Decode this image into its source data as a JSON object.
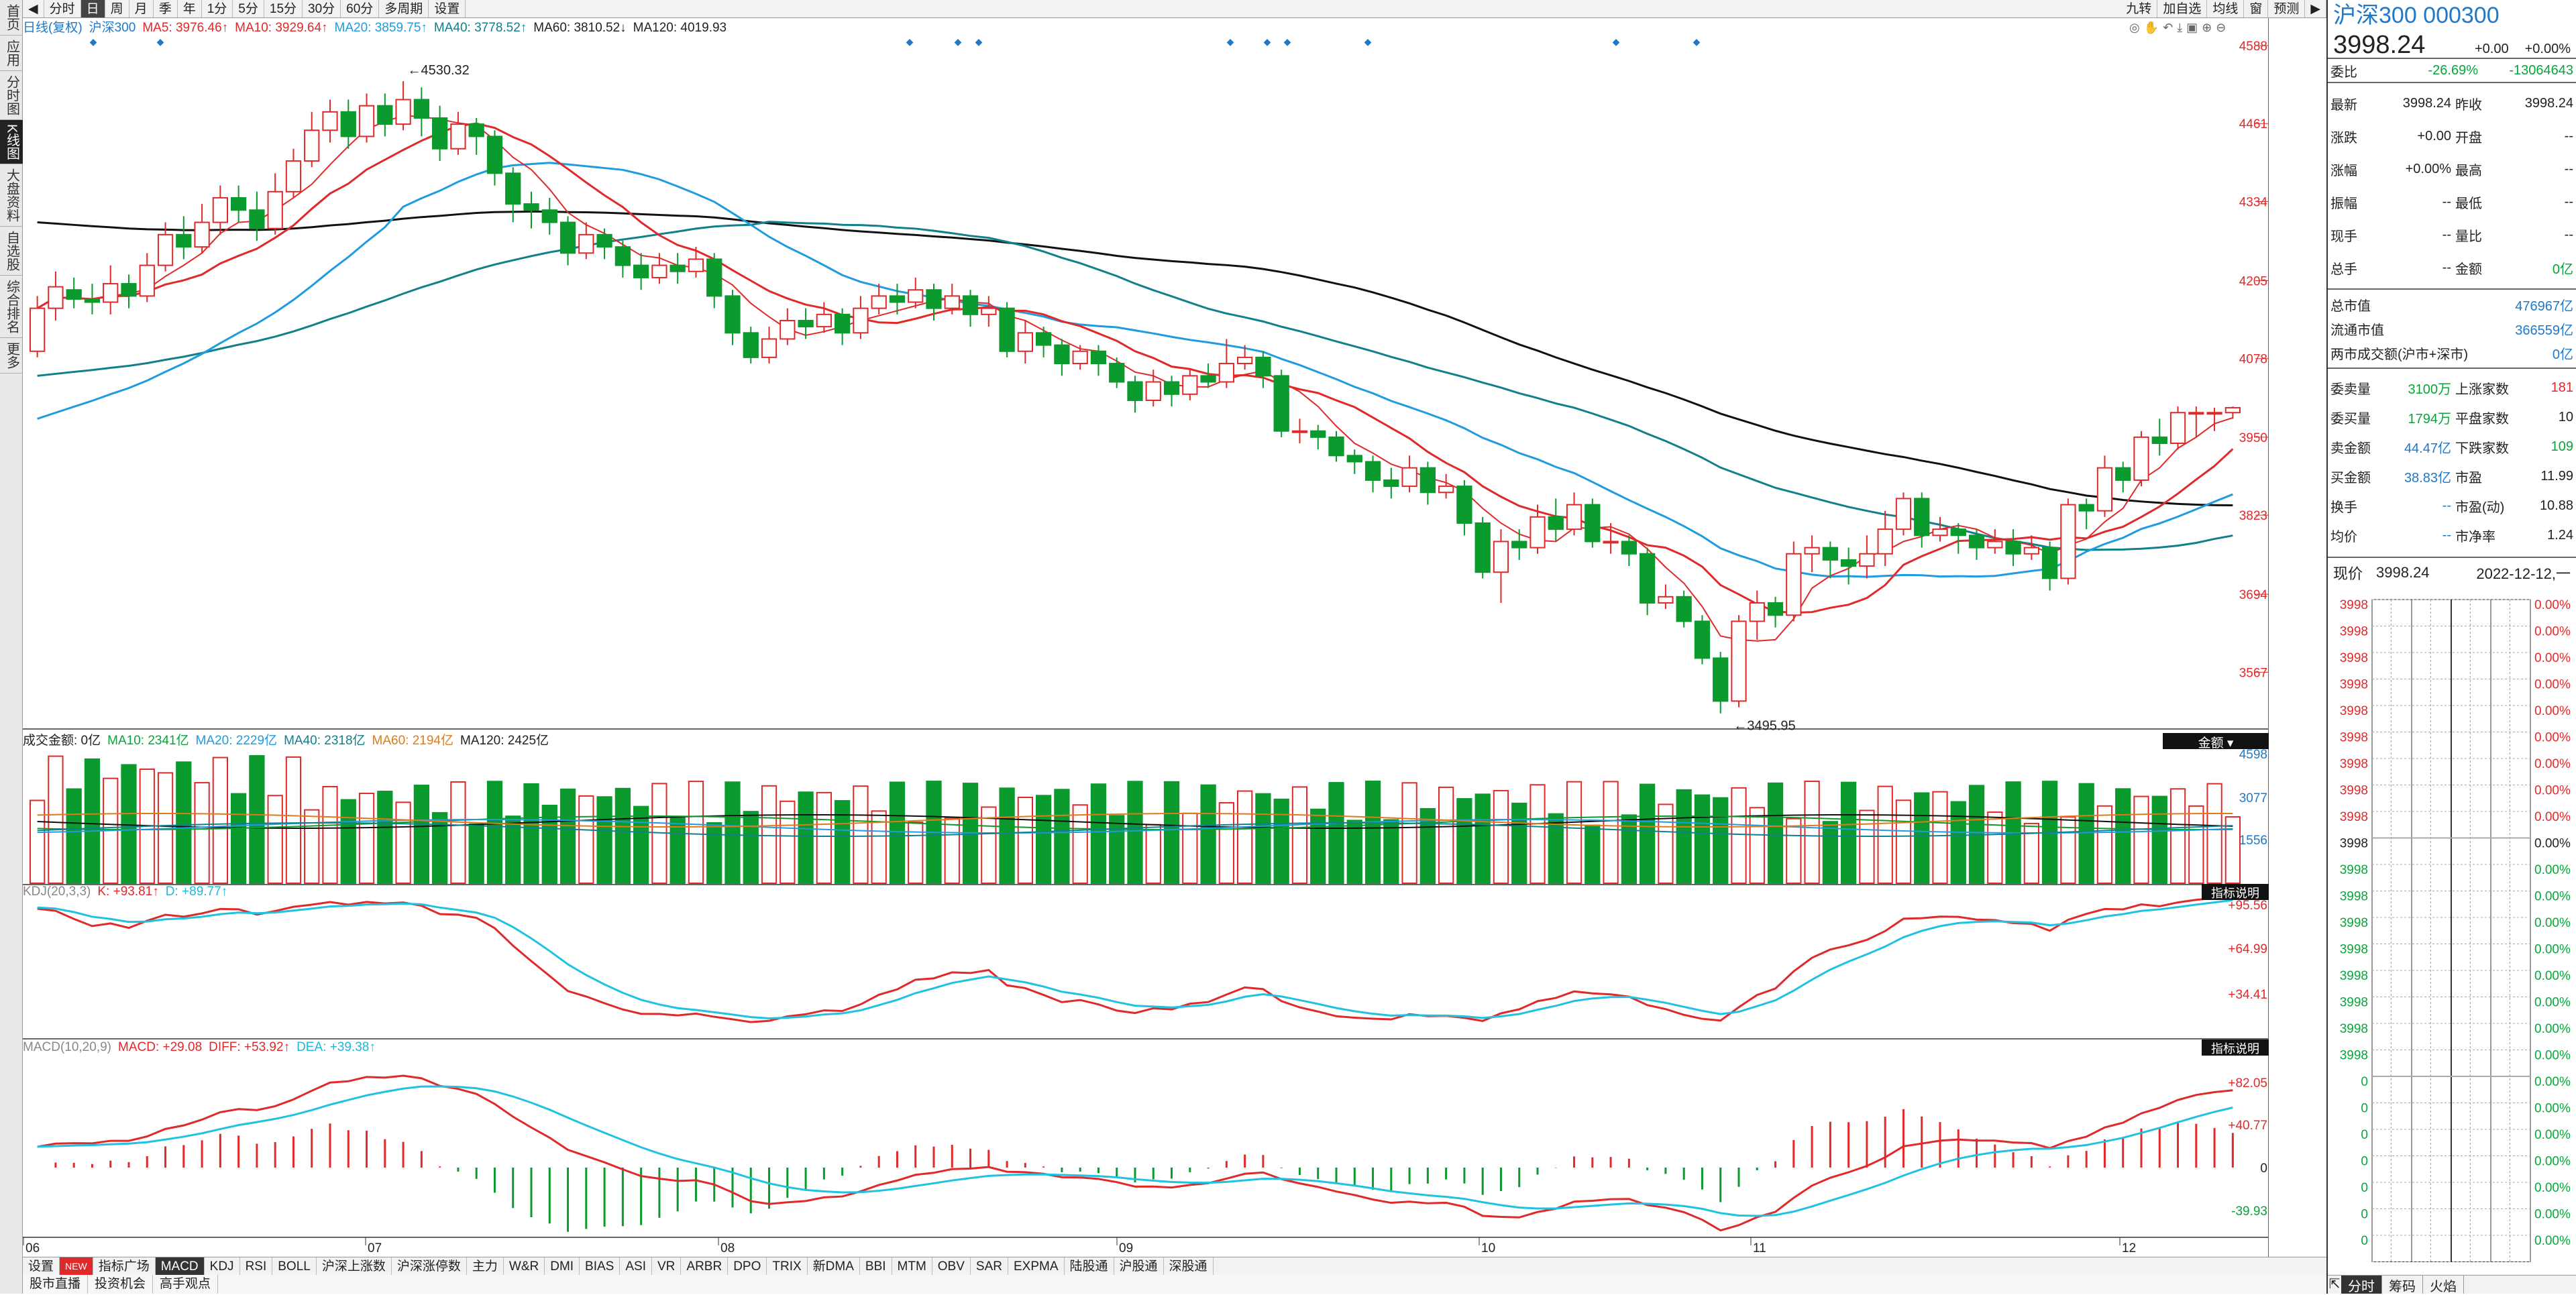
{
  "sidebar": [
    "首页",
    "应用",
    "分时图",
    "K线图",
    "大盘资料",
    "自选股",
    "综合排名",
    "更多"
  ],
  "sidebar_active": 3,
  "periods": [
    "分时",
    "日",
    "周",
    "月",
    "季",
    "年",
    "1分",
    "5分",
    "15分",
    "30分",
    "60分",
    "多周期",
    "设置"
  ],
  "period_active": 1,
  "top_right": [
    "九转",
    "加自选",
    "均线",
    "窗",
    "预测"
  ],
  "legend_main": {
    "name": "日线(复权)",
    "index": "沪深300",
    "ma5": "MA5: 3976.46↑",
    "ma10": "MA10: 3929.64↑",
    "ma20": "MA20: 3859.75↑",
    "ma40": "MA40: 3778.52↑",
    "ma60": "MA60: 3810.52↓",
    "ma120": "MA120: 4019.93"
  },
  "legend_vol": {
    "name": "成交金额: 0亿",
    "ma10": "MA10: 2341亿",
    "ma20": "MA20: 2229亿",
    "ma40": "MA40: 2318亿",
    "ma60": "MA60: 2194亿",
    "ma120": "MA120: 2425亿",
    "btn": "金额"
  },
  "legend_kdj": {
    "name": "KDJ(20,3,3)",
    "k": "K: +93.81↑",
    "d": "D: +89.77↑",
    "btn": "指标说明"
  },
  "legend_macd": {
    "name": "MACD(10,20,9)",
    "macd": "MACD: +29.08",
    "diff": "DIFF: +53.92↑",
    "dea": "DEA: +39.38↑",
    "btn": "指标说明"
  },
  "annotations": {
    "high": "4530.32",
    "low": "3495.95"
  },
  "axis_main": [
    "4588",
    "4461",
    "4334",
    "4205",
    "4078",
    "3950",
    "3823",
    "3694",
    "3567"
  ],
  "axis_vol": [
    "4598",
    "3077",
    "1556"
  ],
  "axis_kdj": [
    "+95.56",
    "+64.99",
    "+34.41"
  ],
  "axis_macd": [
    "+82.05",
    "+40.77",
    "0",
    "-39.93"
  ],
  "months": [
    "06",
    "07",
    "08",
    "09",
    "10",
    "11",
    "12"
  ],
  "indicator_tabs": [
    "设置",
    "NEW",
    "指标广场",
    "MACD",
    "KDJ",
    "RSI",
    "BOLL",
    "沪深上涨数",
    "沪深涨停数",
    "主力",
    "W&R",
    "DMI",
    "BIAS",
    "ASI",
    "VR",
    "ARBR",
    "DPO",
    "TRIX",
    "新DMA",
    "BBI",
    "MTM",
    "OBV",
    "SAR",
    "EXPMA",
    "陆股通",
    "沪股通",
    "深股通"
  ],
  "indicator_active": 3,
  "bottom_tabs": [
    "股市直播",
    "投资机会",
    "高手观点"
  ],
  "quote": {
    "title": "沪深300 000300",
    "price": "3998.24",
    "chg": "+0.00",
    "pct": "+0.00%",
    "weibi_l": "委比",
    "weibi_v": "-26.69%",
    "weicha_v": "-13064643",
    "rows": [
      [
        "最新",
        "3998.24",
        "昨收",
        "3998.24"
      ],
      [
        "涨跌",
        "+0.00",
        "开盘",
        "--"
      ],
      [
        "涨幅",
        "+0.00%",
        "最高",
        "--"
      ],
      [
        "振幅",
        "--",
        "最低",
        "--"
      ],
      [
        "现手",
        "--",
        "量比",
        "--"
      ],
      [
        "总手",
        "--",
        "金额",
        "0亿"
      ]
    ],
    "cap": [
      [
        "总市值",
        "476967亿"
      ],
      [
        "流通市值",
        "366559亿"
      ],
      [
        "两市成交额(沪市+深市)",
        "0亿"
      ]
    ],
    "stats": [
      [
        "委卖量",
        "3100万",
        "上涨家数",
        "181"
      ],
      [
        "委买量",
        "1794万",
        "平盘家数",
        "10"
      ],
      [
        "卖金额",
        "44.47亿",
        "下跌家数",
        "109"
      ],
      [
        "买金额",
        "38.83亿",
        "市盈",
        "11.99"
      ],
      [
        "换手",
        "--",
        "市盈(动)",
        "10.88"
      ],
      [
        "均价",
        "--",
        "市净率",
        "1.24"
      ]
    ],
    "now_label": "现价",
    "now_price": "3998.24",
    "now_date": "2022-12-12,一",
    "tick_price": "3998",
    "tick_pct": "0.00%",
    "tick_low": "0",
    "bottom": [
      "分时",
      "筹码",
      "火焰"
    ]
  },
  "chart_data": {
    "type": "candlestick",
    "main_ylim": [
      3480,
      4600
    ],
    "candles": [
      [
        4090,
        4160,
        4180,
        4080
      ],
      [
        4160,
        4195,
        4220,
        4140
      ],
      [
        4190,
        4175,
        4210,
        4160
      ],
      [
        4175,
        4170,
        4200,
        4150
      ],
      [
        4170,
        4200,
        4230,
        4150
      ],
      [
        4200,
        4180,
        4215,
        4160
      ],
      [
        4180,
        4230,
        4250,
        4170
      ],
      [
        4230,
        4280,
        4300,
        4220
      ],
      [
        4280,
        4260,
        4310,
        4240
      ],
      [
        4260,
        4300,
        4330,
        4250
      ],
      [
        4300,
        4340,
        4360,
        4280
      ],
      [
        4340,
        4320,
        4360,
        4300
      ],
      [
        4320,
        4290,
        4350,
        4270
      ],
      [
        4290,
        4350,
        4380,
        4280
      ],
      [
        4350,
        4400,
        4420,
        4340
      ],
      [
        4400,
        4450,
        4480,
        4390
      ],
      [
        4450,
        4480,
        4500,
        4430
      ],
      [
        4480,
        4440,
        4500,
        4420
      ],
      [
        4440,
        4490,
        4510,
        4430
      ],
      [
        4490,
        4460,
        4510,
        4440
      ],
      [
        4460,
        4500,
        4530,
        4450
      ],
      [
        4500,
        4470,
        4520,
        4440
      ],
      [
        4470,
        4420,
        4490,
        4400
      ],
      [
        4420,
        4460,
        4480,
        4410
      ],
      [
        4460,
        4440,
        4470,
        4410
      ],
      [
        4440,
        4380,
        4450,
        4360
      ],
      [
        4380,
        4330,
        4390,
        4300
      ],
      [
        4330,
        4320,
        4350,
        4290
      ],
      [
        4320,
        4300,
        4340,
        4280
      ],
      [
        4300,
        4250,
        4310,
        4230
      ],
      [
        4250,
        4280,
        4300,
        4240
      ],
      [
        4280,
        4260,
        4290,
        4240
      ],
      [
        4260,
        4230,
        4270,
        4210
      ],
      [
        4230,
        4210,
        4250,
        4190
      ],
      [
        4210,
        4230,
        4250,
        4200
      ],
      [
        4230,
        4220,
        4250,
        4200
      ],
      [
        4220,
        4240,
        4260,
        4210
      ],
      [
        4240,
        4180,
        4250,
        4160
      ],
      [
        4180,
        4120,
        4190,
        4100
      ],
      [
        4120,
        4080,
        4130,
        4070
      ],
      [
        4080,
        4110,
        4130,
        4070
      ],
      [
        4110,
        4140,
        4160,
        4100
      ],
      [
        4140,
        4130,
        4160,
        4110
      ],
      [
        4130,
        4150,
        4170,
        4120
      ],
      [
        4150,
        4120,
        4160,
        4100
      ],
      [
        4120,
        4160,
        4180,
        4110
      ],
      [
        4160,
        4180,
        4200,
        4150
      ],
      [
        4180,
        4170,
        4200,
        4150
      ],
      [
        4170,
        4190,
        4210,
        4160
      ],
      [
        4190,
        4160,
        4200,
        4140
      ],
      [
        4160,
        4180,
        4200,
        4150
      ],
      [
        4180,
        4150,
        4190,
        4130
      ],
      [
        4150,
        4160,
        4180,
        4130
      ],
      [
        4160,
        4090,
        4170,
        4080
      ],
      [
        4090,
        4120,
        4140,
        4070
      ],
      [
        4120,
        4100,
        4130,
        4080
      ],
      [
        4100,
        4070,
        4110,
        4050
      ],
      [
        4070,
        4090,
        4100,
        4060
      ],
      [
        4090,
        4070,
        4100,
        4050
      ],
      [
        4070,
        4040,
        4080,
        4030
      ],
      [
        4040,
        4010,
        4050,
        3990
      ],
      [
        4010,
        4040,
        4060,
        4000
      ],
      [
        4040,
        4020,
        4050,
        4000
      ],
      [
        4020,
        4050,
        4060,
        4010
      ],
      [
        4050,
        4040,
        4070,
        4030
      ],
      [
        4040,
        4070,
        4110,
        4030
      ],
      [
        4070,
        4080,
        4100,
        4060
      ],
      [
        4080,
        4050,
        4090,
        4030
      ],
      [
        4050,
        3960,
        4060,
        3950
      ],
      [
        3960,
        3960,
        3980,
        3940
      ],
      [
        3960,
        3950,
        3970,
        3930
      ],
      [
        3950,
        3920,
        3960,
        3910
      ],
      [
        3920,
        3910,
        3930,
        3890
      ],
      [
        3910,
        3880,
        3920,
        3860
      ],
      [
        3880,
        3870,
        3900,
        3850
      ],
      [
        3870,
        3900,
        3920,
        3860
      ],
      [
        3900,
        3860,
        3910,
        3840
      ],
      [
        3860,
        3870,
        3890,
        3850
      ],
      [
        3870,
        3810,
        3880,
        3790
      ],
      [
        3810,
        3730,
        3820,
        3720
      ],
      [
        3730,
        3780,
        3800,
        3680
      ],
      [
        3780,
        3770,
        3800,
        3750
      ],
      [
        3770,
        3820,
        3840,
        3760
      ],
      [
        3820,
        3800,
        3850,
        3780
      ],
      [
        3800,
        3840,
        3860,
        3790
      ],
      [
        3840,
        3780,
        3850,
        3770
      ],
      [
        3780,
        3780,
        3810,
        3760
      ],
      [
        3780,
        3760,
        3790,
        3740
      ],
      [
        3760,
        3680,
        3770,
        3660
      ],
      [
        3680,
        3690,
        3710,
        3670
      ],
      [
        3690,
        3650,
        3700,
        3640
      ],
      [
        3650,
        3590,
        3660,
        3580
      ],
      [
        3590,
        3520,
        3600,
        3500
      ],
      [
        3520,
        3650,
        3660,
        3510
      ],
      [
        3650,
        3680,
        3700,
        3620
      ],
      [
        3680,
        3660,
        3690,
        3640
      ],
      [
        3660,
        3760,
        3780,
        3650
      ],
      [
        3760,
        3770,
        3790,
        3730
      ],
      [
        3770,
        3750,
        3780,
        3720
      ],
      [
        3750,
        3740,
        3770,
        3710
      ],
      [
        3740,
        3760,
        3790,
        3720
      ],
      [
        3760,
        3800,
        3830,
        3740
      ],
      [
        3800,
        3850,
        3860,
        3790
      ],
      [
        3850,
        3790,
        3860,
        3770
      ],
      [
        3790,
        3800,
        3820,
        3780
      ],
      [
        3800,
        3790,
        3810,
        3760
      ],
      [
        3790,
        3770,
        3800,
        3750
      ],
      [
        3770,
        3780,
        3800,
        3760
      ],
      [
        3780,
        3760,
        3800,
        3740
      ],
      [
        3760,
        3770,
        3790,
        3750
      ],
      [
        3770,
        3720,
        3780,
        3700
      ],
      [
        3720,
        3840,
        3850,
        3710
      ],
      [
        3840,
        3830,
        3850,
        3800
      ],
      [
        3830,
        3900,
        3920,
        3820
      ],
      [
        3900,
        3880,
        3910,
        3860
      ],
      [
        3880,
        3950,
        3960,
        3870
      ],
      [
        3950,
        3940,
        3980,
        3920
      ],
      [
        3940,
        3990,
        4000,
        3930
      ],
      [
        3990,
        3990,
        4000,
        3950
      ],
      [
        3990,
        3990,
        3998,
        3960
      ],
      [
        3990,
        3998,
        4000,
        3980
      ]
    ]
  }
}
